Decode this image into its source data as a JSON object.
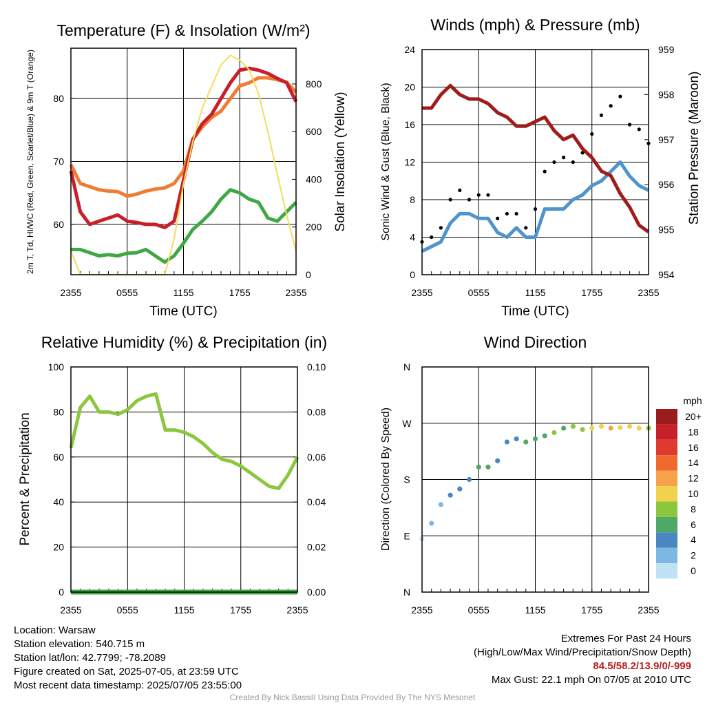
{
  "chart_data": [
    {
      "id": "temp",
      "type": "line",
      "title": "Temperature (F) & Insolation (W/m²)",
      "xlabel": "Time (UTC)",
      "ylabel": "2m T, Td, HI/WC (Red, Green, Scarlet/Blue) & 9m T (Orange)",
      "y2label": "Solar Insolation (Yellow)",
      "xticks": [
        "2355",
        "0555",
        "1155",
        "1755",
        "2355"
      ],
      "ylim": [
        52,
        88
      ],
      "yticks": [
        60,
        70,
        80
      ],
      "y2lim": [
        0,
        950
      ],
      "y2ticks": [
        0,
        200,
        400,
        600,
        800
      ],
      "x_hours": [
        0,
        1,
        2,
        3,
        4,
        5,
        6,
        7,
        8,
        9,
        10,
        11,
        12,
        13,
        14,
        15,
        16,
        17,
        18,
        19,
        20,
        21,
        22,
        23,
        24
      ],
      "series": [
        {
          "color": "#f07c34",
          "axis": "left",
          "values": [
            69.5,
            66.5,
            66,
            65.5,
            65.3,
            65.2,
            64.5,
            64.8,
            65.3,
            65.6,
            65.8,
            66.5,
            68.5,
            73.5,
            75.5,
            77,
            78,
            80,
            82,
            82.5,
            83.3,
            83.3,
            83,
            82.6,
            81
          ]
        },
        {
          "color": "#c8202a",
          "axis": "left",
          "values": [
            68.5,
            62,
            60,
            60.5,
            61,
            61.5,
            60.5,
            60.3,
            60,
            60,
            59.5,
            60.5,
            67,
            73.5,
            76,
            77.5,
            80,
            82.5,
            84.5,
            84.8,
            84.5,
            84,
            83.2,
            82.5,
            79.5
          ]
        },
        {
          "color": "#3fa845",
          "axis": "left",
          "values": [
            56,
            56,
            55.5,
            55,
            55.2,
            55,
            55.4,
            55.5,
            56,
            55,
            54,
            55,
            57,
            59.2,
            60.5,
            62,
            64,
            65.5,
            65,
            64,
            63.5,
            61,
            60.5,
            62,
            63.5
          ]
        },
        {
          "color": "#f4dc5a",
          "axis": "right",
          "values": [
            100,
            0,
            0,
            0,
            0,
            0,
            0,
            0,
            0,
            0,
            0,
            150,
            380,
            560,
            700,
            790,
            880,
            920,
            900,
            860,
            760,
            600,
            420,
            250,
            100
          ]
        }
      ]
    },
    {
      "id": "wind",
      "type": "line",
      "title": "Winds (mph) & Pressure (mb)",
      "xlabel": "Time (UTC)",
      "ylabel": "Sonic Wind & Gust (Blue, Black)",
      "y2label": "Station Pressure (Maroon)",
      "xticks": [
        "2355",
        "0555",
        "1155",
        "1755",
        "2355"
      ],
      "ylim": [
        0,
        24
      ],
      "yticks": [
        0,
        4,
        8,
        12,
        16,
        20,
        24
      ],
      "y2lim": [
        954,
        959
      ],
      "y2ticks": [
        954,
        955,
        956,
        957,
        958,
        959
      ],
      "x_hours": [
        0,
        1,
        2,
        3,
        4,
        5,
        6,
        7,
        8,
        9,
        10,
        11,
        12,
        13,
        14,
        15,
        16,
        17,
        18,
        19,
        20,
        21,
        22,
        23,
        24
      ],
      "series": [
        {
          "color": "#4f94cd",
          "axis": "left",
          "values": [
            2.5,
            3,
            3.5,
            5.5,
            6.5,
            6.5,
            6,
            6,
            4.5,
            4,
            5,
            4,
            4,
            7,
            7,
            7,
            8,
            8.5,
            9.5,
            10,
            11,
            12,
            10.5,
            9.5,
            9
          ]
        },
        {
          "color": "#000000",
          "axis": "left",
          "type": "scatter",
          "values": [
            3.5,
            4,
            5,
            8,
            9,
            8,
            8.5,
            8.5,
            6,
            6.5,
            6.5,
            5,
            7,
            11,
            12,
            12.5,
            12,
            13,
            15,
            17,
            18,
            19,
            16,
            15.5,
            14
          ]
        },
        {
          "color": "#a01c1c",
          "axis": "right",
          "values": [
            957.7,
            957.7,
            958,
            958.2,
            958,
            957.9,
            957.9,
            957.8,
            957.6,
            957.5,
            957.3,
            957.3,
            957.4,
            957.5,
            957.2,
            957,
            957.1,
            956.8,
            956.6,
            956.3,
            956.2,
            955.8,
            955.5,
            955.1,
            954.95
          ]
        }
      ]
    },
    {
      "id": "rh",
      "type": "line",
      "title": "Relative Humidity (%) & Precipitation (in)",
      "ylabel": "Percent & Precipitation",
      "xticks": [
        "2355",
        "0555",
        "1155",
        "1755",
        "2355"
      ],
      "ylim": [
        0,
        100
      ],
      "yticks": [
        0,
        20,
        40,
        60,
        80,
        100
      ],
      "y2lim": [
        0,
        0.1
      ],
      "y2ticks": [
        "0.00",
        "0.02",
        "0.04",
        "0.06",
        "0.08",
        "0.10"
      ],
      "x_hours": [
        0,
        1,
        2,
        3,
        4,
        5,
        6,
        7,
        8,
        9,
        10,
        11,
        12,
        13,
        14,
        15,
        16,
        17,
        18,
        19,
        20,
        21,
        22,
        23,
        24
      ],
      "series": [
        {
          "color": "#8cc63f",
          "axis": "left",
          "values": [
            64,
            82,
            87,
            80,
            80,
            79,
            81,
            85,
            87,
            88,
            72,
            72,
            71,
            69,
            66,
            62,
            59,
            58,
            56,
            53,
            50,
            47,
            46,
            52,
            60
          ]
        },
        {
          "color": "#3fa845",
          "axis": "right",
          "values": [
            0,
            0,
            0,
            0,
            0,
            0,
            0,
            0,
            0,
            0,
            0,
            0,
            0,
            0,
            0,
            0,
            0,
            0,
            0,
            0,
            0,
            0,
            0,
            0,
            0
          ]
        }
      ]
    },
    {
      "id": "wdir",
      "type": "scatter",
      "title": "Wind Direction",
      "ylabel": "Direction (Colored By Speed)",
      "xticks": [
        "2355",
        "0555",
        "1155",
        "1755",
        "2355"
      ],
      "ylim": [
        0,
        360
      ],
      "yticks": [
        "N",
        "E",
        "S",
        "W",
        "N"
      ],
      "x_hours": [
        0,
        1,
        2,
        3,
        4,
        5,
        6,
        7,
        8,
        9,
        10,
        11,
        12,
        13,
        14,
        15,
        16,
        17,
        18,
        19,
        20,
        21,
        22,
        23,
        24
      ],
      "direction_deg": [
        85,
        110,
        140,
        155,
        165,
        180,
        200,
        200,
        210,
        240,
        245,
        240,
        245,
        250,
        255,
        262,
        265,
        260,
        262,
        265,
        262,
        263,
        265,
        262,
        262
      ],
      "speed_mph": [
        1,
        2,
        3,
        4,
        5,
        5,
        6,
        7,
        5,
        4,
        5,
        6,
        6,
        7,
        8,
        7,
        8,
        9,
        10,
        11,
        12,
        11,
        10,
        10,
        9
      ],
      "colorbar": {
        "title": "mph",
        "labels": [
          "20+",
          "18",
          "16",
          "14",
          "12",
          "10",
          "8",
          "6",
          "4",
          "2",
          "0"
        ],
        "colors": [
          "#9b1c1c",
          "#c8202a",
          "#e0392d",
          "#f06a2f",
          "#f6a24a",
          "#f2d24d",
          "#8cc63f",
          "#4fa866",
          "#4a86c0",
          "#7db8e2",
          "#bfe3f5"
        ]
      }
    }
  ],
  "footer": {
    "location": "Location: Warsaw",
    "elevation": "Station elevation: 540.715 m",
    "latlon": "Station lat/lon: 42.7799; -78.2089",
    "created": "Figure created on Sat, 2025-07-05, at 23:59 UTC",
    "recent": "Most recent data timestamp: 2025/07/05 23:55:00",
    "extremes_title": "Extremes For Past 24 Hours",
    "extremes_fields": "(High/Low/Max Wind/Precipitation/Snow Depth)",
    "extremes_values": "84.5/58.2/13.9/0/-999",
    "max_gust": "Max Gust: 22.1 mph On 07/05 at 2010 UTC",
    "credit": "Created By Nick Bassill Using Data Provided By The NYS Mesonet"
  }
}
